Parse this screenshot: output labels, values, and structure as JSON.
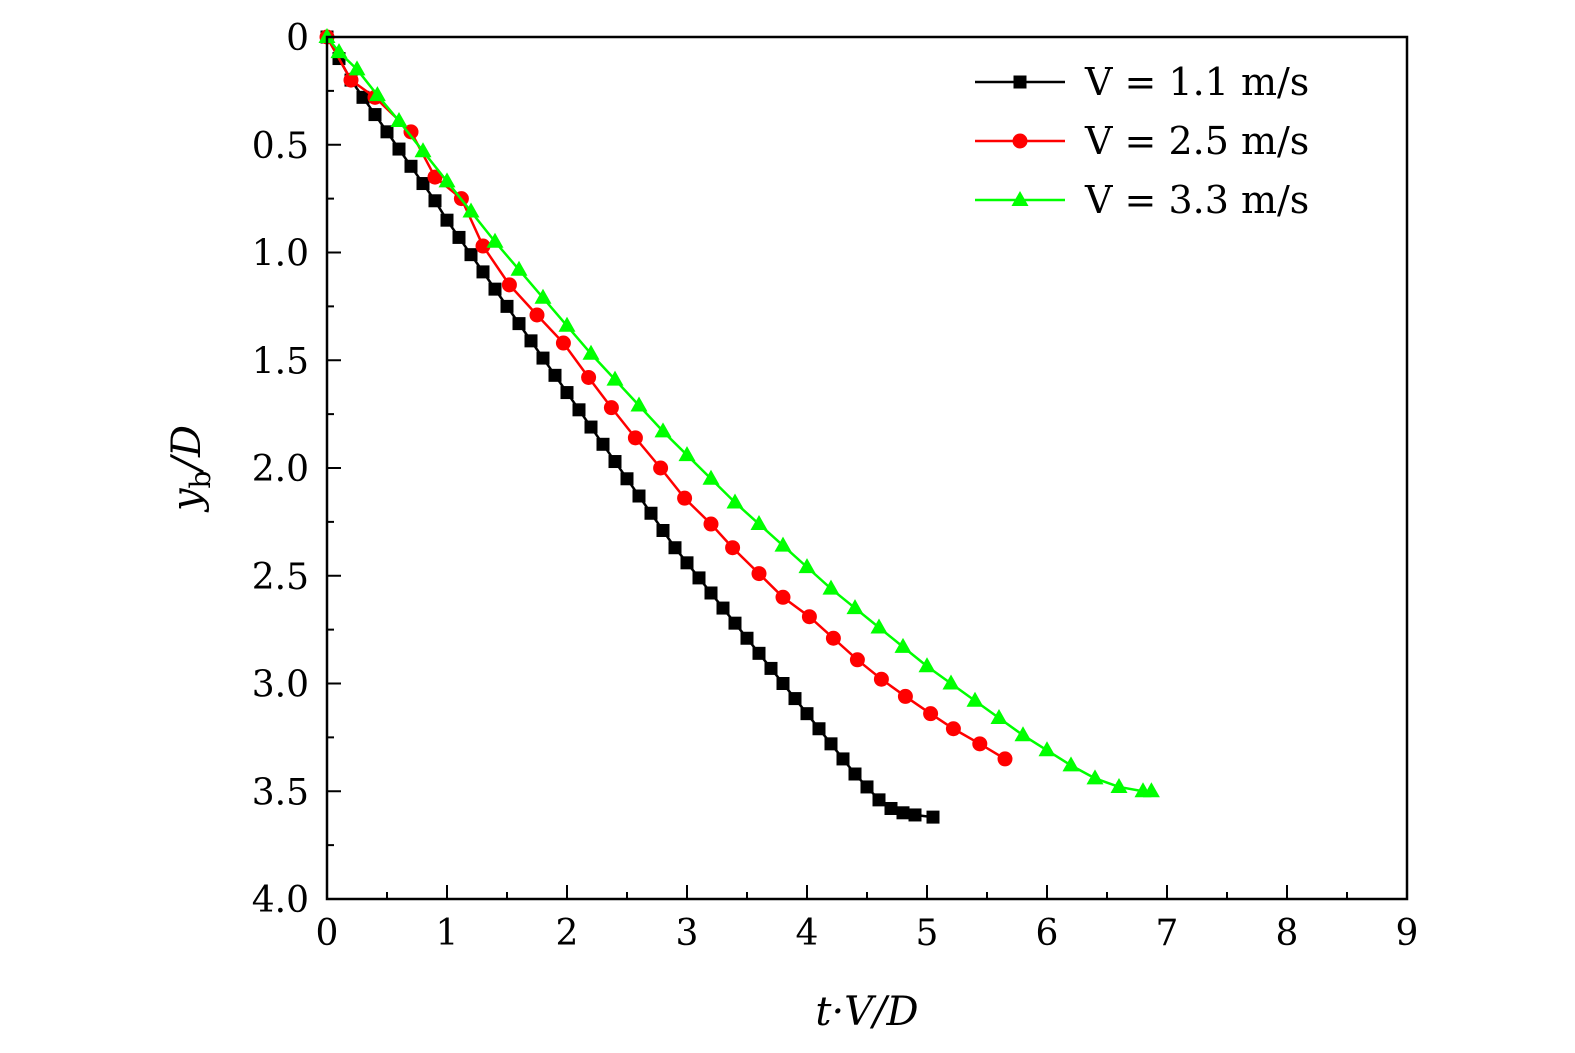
{
  "chart_data": {
    "type": "line",
    "xlabel": "t·V/D",
    "ylabel": "y_b/D",
    "ylabel_parts": {
      "main": "y",
      "sub": "b",
      "rest": "/D"
    },
    "xlim": [
      0,
      9
    ],
    "ylim": [
      0,
      4.0
    ],
    "y_inverted": true,
    "xticks": [
      "0",
      "1",
      "2",
      "3",
      "4",
      "5",
      "6",
      "7",
      "8",
      "9"
    ],
    "yticks": [
      "0",
      "0.5",
      "1.0",
      "1.5",
      "2.0",
      "2.5",
      "3.0",
      "3.5",
      "4.0"
    ],
    "grid": false,
    "legend_position": "top-right",
    "series": [
      {
        "name": "V = 1.1 m/s",
        "color": "#000000",
        "marker": "square",
        "x": [
          0.0,
          0.1,
          0.2,
          0.3,
          0.4,
          0.5,
          0.6,
          0.7,
          0.8,
          0.9,
          1.0,
          1.1,
          1.2,
          1.3,
          1.4,
          1.5,
          1.6,
          1.7,
          1.8,
          1.9,
          2.0,
          2.1,
          2.2,
          2.3,
          2.4,
          2.5,
          2.6,
          2.7,
          2.8,
          2.9,
          3.0,
          3.1,
          3.2,
          3.3,
          3.4,
          3.5,
          3.6,
          3.7,
          3.8,
          3.9,
          4.0,
          4.1,
          4.2,
          4.3,
          4.4,
          4.5,
          4.6,
          4.7,
          4.8,
          4.9,
          5.05
        ],
        "y": [
          0.0,
          0.1,
          0.2,
          0.28,
          0.36,
          0.44,
          0.52,
          0.6,
          0.68,
          0.76,
          0.85,
          0.93,
          1.01,
          1.09,
          1.17,
          1.25,
          1.33,
          1.41,
          1.49,
          1.57,
          1.65,
          1.73,
          1.81,
          1.89,
          1.97,
          2.05,
          2.13,
          2.21,
          2.29,
          2.37,
          2.44,
          2.51,
          2.58,
          2.65,
          2.72,
          2.79,
          2.86,
          2.93,
          3.0,
          3.07,
          3.14,
          3.21,
          3.28,
          3.35,
          3.42,
          3.48,
          3.54,
          3.58,
          3.6,
          3.61,
          3.62
        ]
      },
      {
        "name": "V = 2.5 m/s",
        "color": "#ff0000",
        "marker": "circle",
        "x": [
          0.0,
          0.2,
          0.4,
          0.7,
          0.9,
          1.12,
          1.3,
          1.52,
          1.75,
          1.97,
          2.18,
          2.37,
          2.57,
          2.78,
          2.98,
          3.2,
          3.38,
          3.6,
          3.8,
          4.02,
          4.22,
          4.42,
          4.62,
          4.82,
          5.03,
          5.22,
          5.44,
          5.65
        ],
        "y": [
          0.0,
          0.2,
          0.28,
          0.44,
          0.65,
          0.75,
          0.97,
          1.15,
          1.29,
          1.42,
          1.58,
          1.72,
          1.86,
          2.0,
          2.14,
          2.26,
          2.37,
          2.49,
          2.6,
          2.69,
          2.79,
          2.89,
          2.98,
          3.06,
          3.14,
          3.21,
          3.28,
          3.35
        ]
      },
      {
        "name": "V = 3.3 m/s",
        "color": "#00ff00",
        "marker": "triangle",
        "x": [
          0.0,
          0.1,
          0.25,
          0.42,
          0.6,
          0.8,
          1.0,
          1.2,
          1.4,
          1.6,
          1.8,
          2.0,
          2.2,
          2.4,
          2.6,
          2.8,
          3.0,
          3.2,
          3.4,
          3.6,
          3.8,
          4.0,
          4.2,
          4.4,
          4.6,
          4.8,
          5.0,
          5.2,
          5.4,
          5.6,
          5.8,
          6.0,
          6.2,
          6.4,
          6.6,
          6.8,
          6.87
        ],
        "y": [
          0.0,
          0.07,
          0.15,
          0.27,
          0.39,
          0.53,
          0.67,
          0.81,
          0.95,
          1.08,
          1.21,
          1.34,
          1.47,
          1.59,
          1.71,
          1.83,
          1.94,
          2.05,
          2.16,
          2.26,
          2.36,
          2.46,
          2.56,
          2.65,
          2.74,
          2.83,
          2.92,
          3.0,
          3.08,
          3.16,
          3.24,
          3.31,
          3.38,
          3.44,
          3.48,
          3.5,
          3.5
        ]
      }
    ]
  }
}
